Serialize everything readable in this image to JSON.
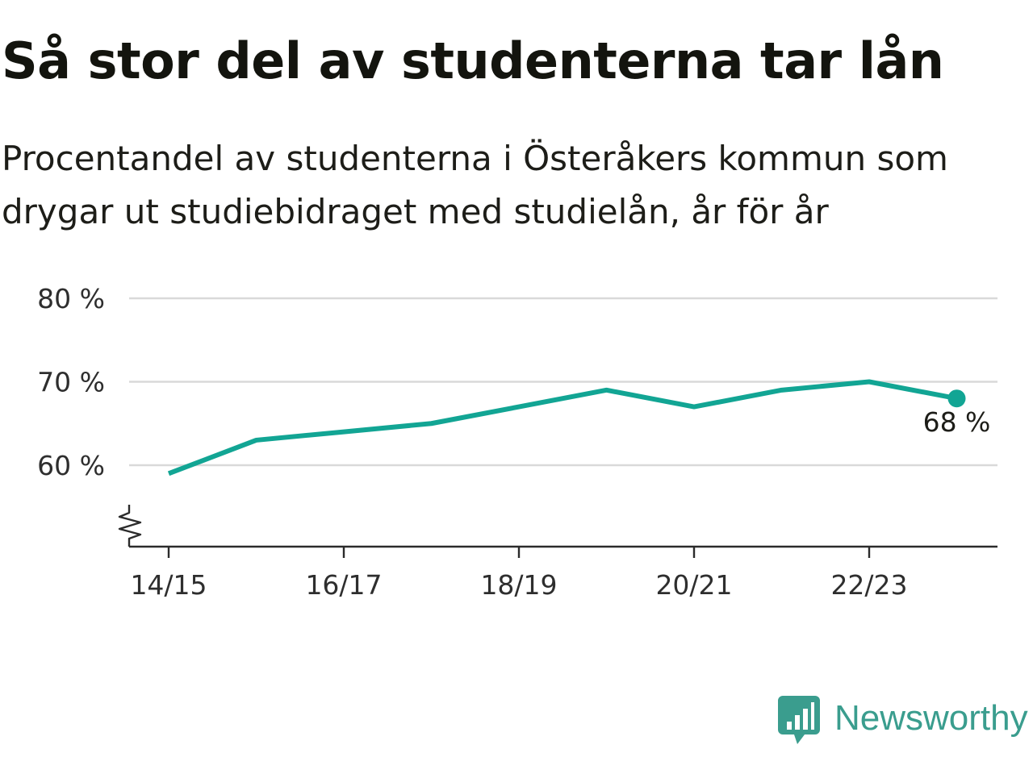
{
  "chart_data": {
    "type": "line",
    "title": "Så stor del av studenterna tar lån",
    "subtitle": "Procentandel av studenterna i Österåkers kommun som drygar ut studiebidraget med studielån, år för år",
    "x": [
      "14/15",
      "15/16",
      "16/17",
      "17/18",
      "18/19",
      "19/20",
      "20/21",
      "21/22",
      "22/23",
      "23/24"
    ],
    "x_tick_labels": [
      "14/15",
      "16/17",
      "18/19",
      "20/21",
      "22/23"
    ],
    "series": [
      {
        "values": [
          59,
          63,
          64,
          65,
          67,
          69,
          67,
          69,
          70,
          68
        ]
      }
    ],
    "ylim": [
      50,
      80
    ],
    "y_ticks": [
      60,
      70,
      80
    ],
    "y_tick_labels": [
      "60 %",
      "70 %",
      "80 %"
    ],
    "y_axis_broken": true,
    "end_label": "68 %",
    "grid": true,
    "line_color": "#12a594",
    "grid_color": "#d9d9d9",
    "axis_color": "#2b2b2b"
  },
  "brand": {
    "name": "Newsworthy",
    "icon": "newsworthy-logo-icon",
    "color": "#3a9d8e"
  }
}
